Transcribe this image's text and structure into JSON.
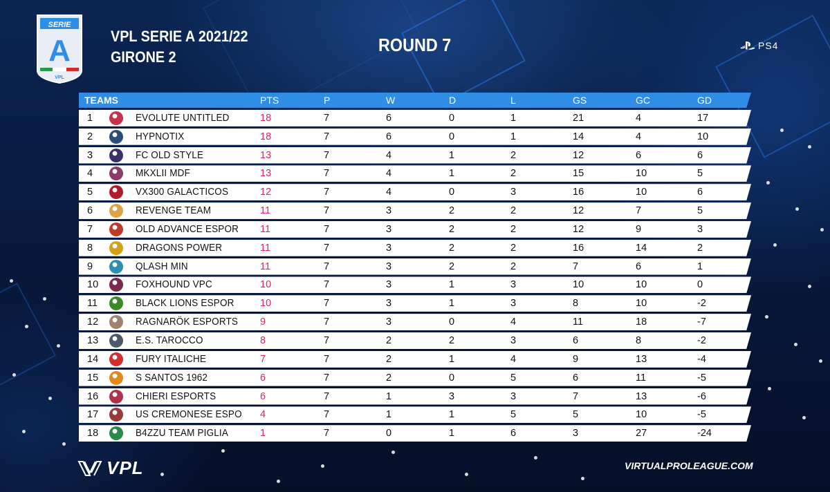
{
  "header": {
    "logo_text": "SERIE",
    "logo_letter": "A",
    "logo_sub": "VPL",
    "title_line1": "VPL SERIE A 2021/22",
    "title_line2": "GIRONE 2",
    "round": "ROUND 7",
    "platform": "PS4"
  },
  "table": {
    "columns": [
      "TEAMS",
      "PTS",
      "P",
      "W",
      "D",
      "L",
      "GS",
      "GC",
      "GD"
    ],
    "rows": [
      {
        "pos": "1",
        "team": "EVOLUTE UNTITLED",
        "pts": "18",
        "p": "7",
        "w": "6",
        "d": "0",
        "l": "1",
        "gs": "21",
        "gc": "4",
        "gd": "17",
        "crest": "#c8324a"
      },
      {
        "pos": "2",
        "team": "HYPNOTIX",
        "pts": "18",
        "p": "7",
        "w": "6",
        "d": "0",
        "l": "1",
        "gs": "14",
        "gc": "4",
        "gd": "10",
        "crest": "#2a4d7a"
      },
      {
        "pos": "3",
        "team": "FC OLD STYLE",
        "pts": "13",
        "p": "7",
        "w": "4",
        "d": "1",
        "l": "2",
        "gs": "12",
        "gc": "6",
        "gd": "6",
        "crest": "#3b2f6b"
      },
      {
        "pos": "4",
        "team": "MKXLII MDF",
        "pts": "13",
        "p": "7",
        "w": "4",
        "d": "1",
        "l": "2",
        "gs": "15",
        "gc": "10",
        "gd": "5",
        "crest": "#8c3c6a"
      },
      {
        "pos": "5",
        "team": "VX300 GALACTICOS",
        "pts": "12",
        "p": "7",
        "w": "4",
        "d": "0",
        "l": "3",
        "gs": "16",
        "gc": "10",
        "gd": "6",
        "crest": "#b01c2e"
      },
      {
        "pos": "6",
        "team": "REVENGE TEAM",
        "pts": "11",
        "p": "7",
        "w": "3",
        "d": "2",
        "l": "2",
        "gs": "12",
        "gc": "7",
        "gd": "5",
        "crest": "#d9a441"
      },
      {
        "pos": "7",
        "team": "OLD ADVANCE ESPOR",
        "pts": "11",
        "p": "7",
        "w": "3",
        "d": "2",
        "l": "2",
        "gs": "12",
        "gc": "9",
        "gd": "3",
        "crest": "#c0392b"
      },
      {
        "pos": "8",
        "team": "DRAGONS POWER",
        "pts": "11",
        "p": "7",
        "w": "3",
        "d": "2",
        "l": "2",
        "gs": "16",
        "gc": "14",
        "gd": "2",
        "crest": "#d4a017"
      },
      {
        "pos": "9",
        "team": "QLASH MIN",
        "pts": "11",
        "p": "7",
        "w": "3",
        "d": "2",
        "l": "2",
        "gs": "7",
        "gc": "6",
        "gd": "1",
        "crest": "#2c8fb0"
      },
      {
        "pos": "10",
        "team": "FOXHOUND VPC",
        "pts": "10",
        "p": "7",
        "w": "3",
        "d": "1",
        "l": "3",
        "gs": "10",
        "gc": "10",
        "gd": "0",
        "crest": "#7a2a4a"
      },
      {
        "pos": "11",
        "team": "BLACK LIONS ESPOR",
        "pts": "10",
        "p": "7",
        "w": "3",
        "d": "1",
        "l": "3",
        "gs": "8",
        "gc": "10",
        "gd": "-2",
        "crest": "#3a8a2a"
      },
      {
        "pos": "12",
        "team": "RAGNARÖK ESPORTS",
        "pts": "9",
        "p": "7",
        "w": "3",
        "d": "0",
        "l": "4",
        "gs": "11",
        "gc": "18",
        "gd": "-7",
        "crest": "#a0826d"
      },
      {
        "pos": "13",
        "team": "E.S. TAROCCO",
        "pts": "8",
        "p": "7",
        "w": "2",
        "d": "2",
        "l": "3",
        "gs": "6",
        "gc": "8",
        "gd": "-2",
        "crest": "#4a5a6a"
      },
      {
        "pos": "14",
        "team": "FURY ITALICHE",
        "pts": "7",
        "p": "7",
        "w": "2",
        "d": "1",
        "l": "4",
        "gs": "9",
        "gc": "13",
        "gd": "-4",
        "crest": "#d03030"
      },
      {
        "pos": "15",
        "team": "S SANTOS 1962",
        "pts": "6",
        "p": "7",
        "w": "2",
        "d": "0",
        "l": "5",
        "gs": "6",
        "gc": "11",
        "gd": "-5",
        "crest": "#e08a1e"
      },
      {
        "pos": "16",
        "team": "CHIERI ESPORTS",
        "pts": "6",
        "p": "7",
        "w": "1",
        "d": "3",
        "l": "3",
        "gs": "7",
        "gc": "13",
        "gd": "-6",
        "crest": "#b03050"
      },
      {
        "pos": "17",
        "team": "US CREMONESE ESPO",
        "pts": "4",
        "p": "7",
        "w": "1",
        "d": "1",
        "l": "5",
        "gs": "5",
        "gc": "10",
        "gd": "-5",
        "crest": "#9a3a3a"
      },
      {
        "pos": "18",
        "team": "B4ZZU TEAM PIGLIA",
        "pts": "1",
        "p": "7",
        "w": "0",
        "d": "1",
        "l": "6",
        "gs": "3",
        "gc": "27",
        "gd": "-24",
        "crest": "#2a8a4a"
      }
    ]
  },
  "footer": {
    "brand": "VPL",
    "website": "VIRTUALPROLEAGUE.COM"
  },
  "colors": {
    "header_bar": "#2f8de6",
    "points": "#e0245e",
    "background": "#071a3a"
  }
}
